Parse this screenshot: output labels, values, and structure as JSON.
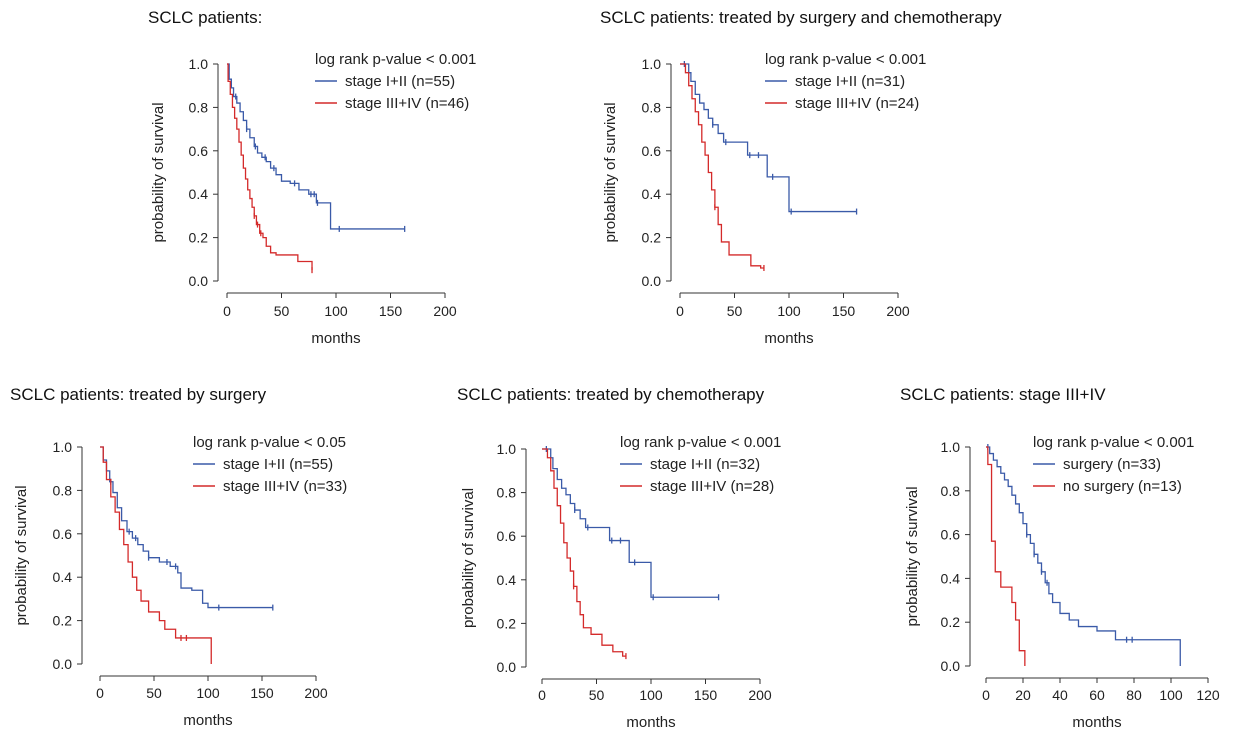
{
  "colors": {
    "series_a": "#3a5aa8",
    "series_b": "#d42a2a",
    "axis": "#333333"
  },
  "chart_data": [
    {
      "type": "line",
      "title": "SCLC patients:",
      "pvalue_label": "log rank p-value < 0.001",
      "xlabel": "months",
      "ylabel": "probability of survival",
      "xlim": [
        0,
        200
      ],
      "ylim": [
        0,
        1
      ],
      "xticks": [
        0,
        50,
        100,
        150,
        200
      ],
      "yticks": [
        0.0,
        0.2,
        0.4,
        0.6,
        0.8,
        1.0
      ],
      "legend_position": "top-right",
      "series": [
        {
          "name": "stage I+II (n=55)",
          "color": "#3a5aa8",
          "x": [
            0,
            2,
            4,
            6,
            9,
            12,
            15,
            18,
            21,
            25,
            28,
            32,
            36,
            40,
            45,
            50,
            58,
            66,
            75,
            82,
            87,
            95,
            103,
            163
          ],
          "y": [
            1.0,
            0.93,
            0.89,
            0.85,
            0.82,
            0.78,
            0.74,
            0.7,
            0.66,
            0.62,
            0.59,
            0.57,
            0.55,
            0.52,
            0.49,
            0.46,
            0.45,
            0.42,
            0.4,
            0.36,
            0.36,
            0.24,
            0.24,
            0.24
          ],
          "censor_x": [
            8,
            18,
            26,
            35,
            43,
            62,
            77,
            80,
            83,
            103,
            163
          ]
        },
        {
          "name": "stage III+IV (n=46)",
          "color": "#d42a2a",
          "x": [
            0,
            1,
            3,
            5,
            7,
            9,
            11,
            13,
            15,
            17,
            19,
            21,
            23,
            25,
            27,
            30,
            33,
            36,
            40,
            45,
            55,
            65,
            72,
            78
          ],
          "y": [
            1.0,
            0.92,
            0.86,
            0.8,
            0.75,
            0.7,
            0.64,
            0.58,
            0.52,
            0.47,
            0.42,
            0.38,
            0.34,
            0.3,
            0.26,
            0.22,
            0.2,
            0.16,
            0.13,
            0.12,
            0.12,
            0.09,
            0.09,
            0.05
          ],
          "censor_x": [
            25,
            28,
            31,
            78
          ]
        }
      ]
    },
    {
      "type": "line",
      "title": "SCLC patients: treated by surgery and chemotherapy",
      "pvalue_label": "log rank p-value < 0.001",
      "xlabel": "months",
      "ylabel": "probability of survival",
      "xlim": [
        0,
        200
      ],
      "ylim": [
        0,
        1
      ],
      "xticks": [
        0,
        50,
        100,
        150,
        200
      ],
      "yticks": [
        0.0,
        0.2,
        0.4,
        0.6,
        0.8,
        1.0
      ],
      "legend_position": "top-right",
      "series": [
        {
          "name": "stage I+II (n=31)",
          "color": "#3a5aa8",
          "x": [
            0,
            4,
            8,
            10,
            14,
            18,
            22,
            26,
            30,
            35,
            40,
            55,
            62,
            76,
            80,
            95,
            100,
            162
          ],
          "y": [
            1.0,
            1.0,
            0.96,
            0.92,
            0.86,
            0.82,
            0.79,
            0.75,
            0.72,
            0.68,
            0.64,
            0.64,
            0.58,
            0.58,
            0.48,
            0.48,
            0.32,
            0.32
          ],
          "censor_x": [
            4,
            30,
            42,
            64,
            72,
            85,
            102,
            162
          ]
        },
        {
          "name": "stage III+IV (n=24)",
          "color": "#d42a2a",
          "x": [
            0,
            5,
            8,
            11,
            14,
            17,
            20,
            23,
            26,
            29,
            32,
            35,
            38,
            45,
            65,
            74,
            77
          ],
          "y": [
            1.0,
            0.96,
            0.9,
            0.84,
            0.78,
            0.72,
            0.64,
            0.58,
            0.5,
            0.42,
            0.34,
            0.26,
            0.18,
            0.12,
            0.07,
            0.06,
            0.06
          ],
          "censor_x": [
            32,
            77
          ]
        }
      ]
    },
    {
      "type": "line",
      "title": "SCLC patients: treated by surgery",
      "pvalue_label": "log rank p-value < 0.05",
      "xlabel": "months",
      "ylabel": "probability of survival",
      "xlim": [
        0,
        200
      ],
      "ylim": [
        0,
        1
      ],
      "xticks": [
        0,
        50,
        100,
        150,
        200
      ],
      "yticks": [
        0.0,
        0.2,
        0.4,
        0.6,
        0.8,
        1.0
      ],
      "legend_position": "top-right",
      "series": [
        {
          "name": "stage I+II (n=55)",
          "color": "#3a5aa8",
          "x": [
            0,
            3,
            6,
            9,
            12,
            16,
            20,
            25,
            30,
            35,
            40,
            45,
            55,
            65,
            72,
            75,
            85,
            95,
            100,
            160
          ],
          "y": [
            1.0,
            0.94,
            0.89,
            0.84,
            0.79,
            0.72,
            0.66,
            0.61,
            0.58,
            0.55,
            0.52,
            0.49,
            0.47,
            0.45,
            0.42,
            0.35,
            0.34,
            0.28,
            0.26,
            0.26
          ],
          "censor_x": [
            10,
            27,
            33,
            45,
            62,
            70,
            110,
            160
          ]
        },
        {
          "name": "stage III+IV (n=33)",
          "color": "#d42a2a",
          "x": [
            0,
            3,
            6,
            10,
            14,
            18,
            22,
            26,
            30,
            34,
            38,
            45,
            55,
            60,
            70,
            80,
            90,
            103
          ],
          "y": [
            1.0,
            0.93,
            0.85,
            0.77,
            0.7,
            0.62,
            0.55,
            0.47,
            0.4,
            0.34,
            0.29,
            0.24,
            0.2,
            0.16,
            0.12,
            0.12,
            0.12,
            0.0
          ],
          "censor_x": [
            75,
            80
          ]
        }
      ]
    },
    {
      "type": "line",
      "title": "SCLC patients: treated by chemotherapy",
      "pvalue_label": "log rank p-value < 0.001",
      "xlabel": "months",
      "ylabel": "probability of survival",
      "xlim": [
        0,
        200
      ],
      "ylim": [
        0,
        1
      ],
      "xticks": [
        0,
        50,
        100,
        150,
        200
      ],
      "yticks": [
        0.0,
        0.2,
        0.4,
        0.6,
        0.8,
        1.0
      ],
      "legend_position": "top-right",
      "series": [
        {
          "name": "stage I+II (n=32)",
          "color": "#3a5aa8",
          "x": [
            0,
            4,
            8,
            10,
            14,
            18,
            22,
            26,
            30,
            35,
            40,
            55,
            62,
            76,
            80,
            95,
            100,
            162
          ],
          "y": [
            1.0,
            1.0,
            0.96,
            0.91,
            0.86,
            0.82,
            0.79,
            0.75,
            0.72,
            0.68,
            0.64,
            0.64,
            0.58,
            0.58,
            0.48,
            0.48,
            0.32,
            0.32
          ],
          "censor_x": [
            4,
            30,
            42,
            64,
            72,
            85,
            102,
            162
          ]
        },
        {
          "name": "stage III+IV (n=28)",
          "color": "#d42a2a",
          "x": [
            0,
            5,
            8,
            11,
            14,
            17,
            20,
            23,
            26,
            29,
            32,
            35,
            38,
            45,
            55,
            65,
            74,
            77
          ],
          "y": [
            1.0,
            0.96,
            0.9,
            0.82,
            0.74,
            0.66,
            0.57,
            0.5,
            0.44,
            0.37,
            0.3,
            0.24,
            0.18,
            0.15,
            0.1,
            0.07,
            0.05,
            0.05
          ],
          "censor_x": [
            29,
            77
          ]
        }
      ]
    },
    {
      "type": "line",
      "title": "SCLC patients: stage III+IV",
      "pvalue_label": "log rank p-value < 0.001",
      "xlabel": "months",
      "ylabel": "probability of survival",
      "xlim": [
        0,
        120
      ],
      "ylim": [
        0,
        1
      ],
      "xticks": [
        0,
        20,
        40,
        60,
        80,
        100,
        120
      ],
      "yticks": [
        0.0,
        0.2,
        0.4,
        0.6,
        0.8,
        1.0
      ],
      "legend_position": "top-right",
      "series": [
        {
          "name": "surgery (n=33)",
          "color": "#3a5aa8",
          "x": [
            0,
            2,
            4,
            6,
            8,
            10,
            12,
            14,
            16,
            18,
            20,
            22,
            24,
            26,
            28,
            30,
            32,
            34,
            36,
            40,
            45,
            50,
            60,
            70,
            80,
            90,
            100,
            104,
            105
          ],
          "y": [
            1.0,
            0.97,
            0.94,
            0.91,
            0.88,
            0.85,
            0.82,
            0.78,
            0.74,
            0.7,
            0.65,
            0.6,
            0.56,
            0.51,
            0.47,
            0.43,
            0.38,
            0.33,
            0.29,
            0.24,
            0.21,
            0.18,
            0.16,
            0.12,
            0.12,
            0.12,
            0.12,
            0.12,
            0.0
          ],
          "censor_x": [
            1,
            22,
            26,
            30,
            33,
            76,
            79
          ]
        },
        {
          "name": "no surgery (n=13)",
          "color": "#d42a2a",
          "x": [
            0,
            1,
            3,
            5,
            8,
            12,
            14,
            16,
            18,
            21
          ],
          "y": [
            1.0,
            0.92,
            0.57,
            0.43,
            0.36,
            0.36,
            0.29,
            0.21,
            0.07,
            0.0
          ],
          "censor_x": []
        }
      ]
    }
  ]
}
